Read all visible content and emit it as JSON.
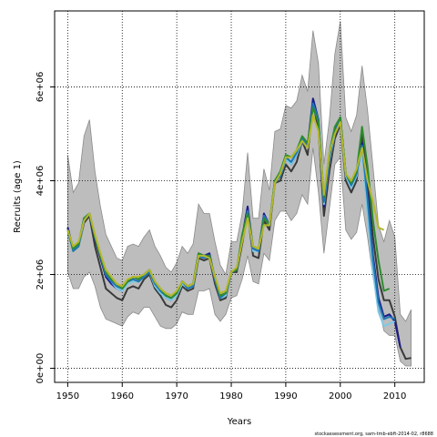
{
  "chart_data": {
    "type": "line",
    "title": "",
    "xlabel": "Years",
    "ylabel": "Recruits (age 1)",
    "xlim": [
      1947.6,
      2015.4
    ],
    "ylim": [
      -300000,
      7620000
    ],
    "x_ticks": [
      1950,
      1960,
      1970,
      1980,
      1990,
      2000,
      2010
    ],
    "x_tick_labels": [
      "1950",
      "1960",
      "1970",
      "1980",
      "1990",
      "2000",
      "2010"
    ],
    "y_ticks": [
      0,
      2000000,
      4000000,
      6000000
    ],
    "y_tick_labels": [
      "0e+00",
      "2e+06",
      "4e+06",
      "6e+06"
    ],
    "grid": true,
    "footnote": "stockassessment.org, sam-tmb-ebft-2014-02, r8688",
    "band": {
      "x": [
        1950,
        1951,
        1952,
        1953,
        1954,
        1955,
        1956,
        1957,
        1958,
        1959,
        1960,
        1961,
        1962,
        1963,
        1964,
        1965,
        1966,
        1967,
        1968,
        1969,
        1970,
        1971,
        1972,
        1973,
        1974,
        1975,
        1976,
        1977,
        1978,
        1979,
        1980,
        1981,
        1982,
        1983,
        1984,
        1985,
        1986,
        1987,
        1988,
        1989,
        1990,
        1991,
        1992,
        1993,
        1994,
        1995,
        1996,
        1997,
        1998,
        1999,
        2000,
        2001,
        2002,
        2003,
        2004,
        2005,
        2006,
        2007,
        2008,
        2009,
        2010,
        2011,
        2012,
        2013
      ],
      "upper": [
        4550000,
        3750000,
        3950000,
        4950000,
        5300000,
        4200000,
        3450000,
        2850000,
        2600000,
        2350000,
        2300000,
        2600000,
        2650000,
        2600000,
        2800000,
        2950000,
        2600000,
        2400000,
        2150000,
        2050000,
        2250000,
        2600000,
        2450000,
        2650000,
        3500000,
        3300000,
        3300000,
        2700000,
        2200000,
        2000000,
        2700000,
        2700000,
        3300000,
        4600000,
        3200000,
        3200000,
        4250000,
        3800000,
        5050000,
        5100000,
        5600000,
        5550000,
        5700000,
        6250000,
        5900000,
        7200000,
        6500000,
        4350000,
        5300000,
        6700000,
        7400000,
        5350000,
        5050000,
        5400000,
        6450000,
        5500000,
        4300000,
        3050000,
        2700000,
        3150000,
        2800000,
        1150000,
        1000000,
        1250000
      ],
      "lower": [
        2050000,
        1700000,
        1700000,
        1950000,
        2050000,
        1750000,
        1300000,
        1050000,
        1000000,
        950000,
        900000,
        1100000,
        1200000,
        1150000,
        1300000,
        1300000,
        1100000,
        900000,
        850000,
        850000,
        950000,
        1200000,
        1150000,
        1150000,
        1650000,
        1650000,
        1700000,
        1150000,
        1000000,
        1150000,
        1500000,
        1550000,
        1900000,
        2400000,
        1850000,
        1800000,
        2450000,
        2300000,
        3150000,
        3350000,
        3350000,
        3150000,
        3300000,
        3700000,
        3500000,
        4700000,
        3750000,
        2450000,
        3400000,
        4350000,
        4500000,
        2950000,
        2750000,
        2900000,
        3500000,
        2800000,
        1950000,
        1300000,
        800000,
        700000,
        700000,
        150000,
        50000,
        50000
      ]
    },
    "series": [
      {
        "color": "#3a3a3a",
        "x": [
          1950,
          1951,
          1952,
          1953,
          1954,
          1955,
          1956,
          1957,
          1958,
          1959,
          1960,
          1961,
          1962,
          1963,
          1964,
          1965,
          1966,
          1967,
          1968,
          1969,
          1970,
          1971,
          1972,
          1973,
          1974,
          1975,
          1976,
          1977,
          1978,
          1979,
          1980,
          1981,
          1982,
          1983,
          1984,
          1985,
          1986,
          1987,
          1988,
          1989,
          1990,
          1991,
          1992,
          1993,
          1994,
          1995,
          1996,
          1997,
          1998,
          1999,
          2000,
          2001,
          2002,
          2003,
          2004,
          2005,
          2006,
          2007,
          2008,
          2009,
          2010,
          2011,
          2012,
          2013
        ],
        "values": [
          3000000,
          2500000,
          2600000,
          3100000,
          3250000,
          2600000,
          2150000,
          1700000,
          1600000,
          1500000,
          1450000,
          1700000,
          1750000,
          1700000,
          1900000,
          2000000,
          1700000,
          1550000,
          1350000,
          1300000,
          1450000,
          1750000,
          1650000,
          1700000,
          2350000,
          2300000,
          2350000,
          1800000,
          1450000,
          1500000,
          2050000,
          2050000,
          2650000,
          3300000,
          2400000,
          2350000,
          3150000,
          2950000,
          3950000,
          4000000,
          4350000,
          4200000,
          4400000,
          4850000,
          4550000,
          5650000,
          5100000,
          3250000,
          4200000,
          4900000,
          5200000,
          4000000,
          3750000,
          4000000,
          5000000,
          4000000,
          2800000,
          1900000,
          1450000,
          1450000,
          1100000,
          450000,
          200000,
          220000
        ]
      },
      {
        "color": "#1a1a8c",
        "x": [
          1950,
          1951,
          1952,
          1953,
          1954,
          1955,
          1956,
          1957,
          1958,
          1959,
          1960,
          1961,
          1962,
          1963,
          1964,
          1965,
          1966,
          1967,
          1968,
          1969,
          1970,
          1971,
          1972,
          1973,
          1974,
          1975,
          1976,
          1977,
          1978,
          1979,
          1980,
          1981,
          1982,
          1983,
          1984,
          1985,
          1986,
          1987,
          1988,
          1989,
          1990,
          1991,
          1992,
          1993,
          1994,
          1995,
          1996,
          1997,
          1998,
          1999,
          2000,
          2001,
          2002,
          2003,
          2004,
          2005,
          2006,
          2007,
          2008,
          2009,
          2010,
          2011
        ],
        "values": [
          3000000,
          2550000,
          2650000,
          3200000,
          3300000,
          2750000,
          2350000,
          1950000,
          1800000,
          1700000,
          1650000,
          1850000,
          1900000,
          1850000,
          2000000,
          2100000,
          1800000,
          1650000,
          1500000,
          1450000,
          1600000,
          1850000,
          1750000,
          1800000,
          2450000,
          2400000,
          2450000,
          1900000,
          1550000,
          1600000,
          2050000,
          2100000,
          2800000,
          3450000,
          2550000,
          2500000,
          3300000,
          3050000,
          4000000,
          4150000,
          4500000,
          4350000,
          4550000,
          4900000,
          4750000,
          5750000,
          5300000,
          3450000,
          4500000,
          5050000,
          5350000,
          4150000,
          3900000,
          4150000,
          4800000,
          3700000,
          2400000,
          1500000,
          1100000,
          1150000,
          1000000,
          450000
        ]
      },
      {
        "color": "#7ec8e3",
        "x": [
          1950,
          1951,
          1952,
          1953,
          1954,
          1955,
          1956,
          1957,
          1958,
          1959,
          1960,
          1961,
          1962,
          1963,
          1964,
          1965,
          1966,
          1967,
          1968,
          1969,
          1970,
          1971,
          1972,
          1973,
          1974,
          1975,
          1976,
          1977,
          1978,
          1979,
          1980,
          1981,
          1982,
          1983,
          1984,
          1985,
          1986,
          1987,
          1988,
          1989,
          1990,
          1991,
          1992,
          1993,
          1994,
          1995,
          1996,
          1997,
          1998,
          1999,
          2000,
          2001,
          2002,
          2003,
          2004,
          2005,
          2006,
          2007,
          2008,
          2009,
          2010
        ],
        "values": [
          2950000,
          2500000,
          2600000,
          3150000,
          3300000,
          2800000,
          2400000,
          2000000,
          1850000,
          1700000,
          1650000,
          1800000,
          1850000,
          1850000,
          1950000,
          2050000,
          1750000,
          1600000,
          1500000,
          1450000,
          1550000,
          1800000,
          1700000,
          1750000,
          2400000,
          2400000,
          2400000,
          1900000,
          1500000,
          1550000,
          2050000,
          2100000,
          2750000,
          3350000,
          2500000,
          2500000,
          3250000,
          3050000,
          3950000,
          4100000,
          4450000,
          4350000,
          4550000,
          4850000,
          4700000,
          5600000,
          5250000,
          3500000,
          4450000,
          5000000,
          5250000,
          4100000,
          3850000,
          4100000,
          4650000,
          3300000,
          2050000,
          1200000,
          900000,
          950000,
          1000000
        ]
      },
      {
        "color": "#1f78b4",
        "x": [
          1950,
          1951,
          1952,
          1953,
          1954,
          1955,
          1956,
          1957,
          1958,
          1959,
          1960,
          1961,
          1962,
          1963,
          1964,
          1965,
          1966,
          1967,
          1968,
          1969,
          1970,
          1971,
          1972,
          1973,
          1974,
          1975,
          1976,
          1977,
          1978,
          1979,
          1980,
          1981,
          1982,
          1983,
          1984,
          1985,
          1986,
          1987,
          1988,
          1989,
          1990,
          1991,
          1992,
          1993,
          1994,
          1995,
          1996,
          1997,
          1998,
          1999,
          2000,
          2001,
          2002,
          2003,
          2004,
          2005,
          2006,
          2007,
          2008,
          2009,
          2010
        ],
        "values": [
          2950000,
          2500000,
          2600000,
          3200000,
          3300000,
          2800000,
          2400000,
          2000000,
          1850000,
          1750000,
          1700000,
          1850000,
          1900000,
          1850000,
          1950000,
          2050000,
          1800000,
          1650000,
          1550000,
          1500000,
          1600000,
          1850000,
          1700000,
          1750000,
          2400000,
          2350000,
          2400000,
          1900000,
          1500000,
          1600000,
          2050000,
          2100000,
          2800000,
          3350000,
          2550000,
          2500000,
          3250000,
          3050000,
          3950000,
          4100000,
          4500000,
          4400000,
          4600000,
          4900000,
          4750000,
          5650000,
          5300000,
          3550000,
          4500000,
          5050000,
          5300000,
          4150000,
          3900000,
          4150000,
          4750000,
          3600000,
          2300000,
          1400000,
          1050000,
          1100000,
          1050000
        ]
      },
      {
        "color": "#2e8b2e",
        "x": [
          1950,
          1951,
          1952,
          1953,
          1954,
          1955,
          1956,
          1957,
          1958,
          1959,
          1960,
          1961,
          1962,
          1963,
          1964,
          1965,
          1966,
          1967,
          1968,
          1969,
          1970,
          1971,
          1972,
          1973,
          1974,
          1975,
          1976,
          1977,
          1978,
          1979,
          1980,
          1981,
          1982,
          1983,
          1984,
          1985,
          1986,
          1987,
          1988,
          1989,
          1990,
          1991,
          1992,
          1993,
          1994,
          1995,
          1996,
          1997,
          1998,
          1999,
          2000,
          2001,
          2002,
          2003,
          2004,
          2005,
          2006,
          2007,
          2008,
          2009
        ],
        "values": [
          2950000,
          2550000,
          2650000,
          3200000,
          3300000,
          2800000,
          2400000,
          2050000,
          1900000,
          1800000,
          1700000,
          1850000,
          1950000,
          1900000,
          2000000,
          2100000,
          1850000,
          1700000,
          1550000,
          1500000,
          1600000,
          1850000,
          1750000,
          1800000,
          2450000,
          2400000,
          2400000,
          1950000,
          1550000,
          1600000,
          2050000,
          2100000,
          2850000,
          3300000,
          2600000,
          2550000,
          3200000,
          3050000,
          4000000,
          4200000,
          4550000,
          4500000,
          4650000,
          4950000,
          4800000,
          5550000,
          5250000,
          3650000,
          4600000,
          5150000,
          5350000,
          4150000,
          3950000,
          4200000,
          5150000,
          4300000,
          3150000,
          2300000,
          1650000,
          1700000
        ]
      },
      {
        "color": "#b5b82a",
        "x": [
          1950,
          1951,
          1952,
          1953,
          1954,
          1955,
          1956,
          1957,
          1958,
          1959,
          1960,
          1961,
          1962,
          1963,
          1964,
          1965,
          1966,
          1967,
          1968,
          1969,
          1970,
          1971,
          1972,
          1973,
          1974,
          1975,
          1976,
          1977,
          1978,
          1979,
          1980,
          1981,
          1982,
          1983,
          1984,
          1985,
          1986,
          1987,
          1988,
          1989,
          1990,
          1991,
          1992,
          1993,
          1994,
          1995,
          1996,
          1997,
          1998,
          1999,
          2000,
          2001,
          2002,
          2003,
          2004,
          2005,
          2006,
          2007,
          2008
        ],
        "values": [
          2950000,
          2600000,
          2700000,
          3150000,
          3300000,
          2850000,
          2450000,
          2100000,
          1950000,
          1800000,
          1750000,
          1900000,
          1950000,
          1950000,
          2000000,
          2100000,
          1850000,
          1700000,
          1600000,
          1550000,
          1650000,
          1850000,
          1750000,
          1800000,
          2400000,
          2400000,
          2350000,
          1950000,
          1600000,
          1650000,
          2050000,
          2150000,
          2700000,
          3200000,
          2600000,
          2550000,
          3050000,
          3050000,
          3950000,
          4150000,
          4500000,
          4500000,
          4650000,
          4850000,
          4700000,
          5400000,
          5050000,
          3700000,
          4600000,
          5000000,
          5250000,
          4150000,
          4000000,
          4250000,
          4700000,
          4000000,
          3550000,
          3000000,
          2950000
        ]
      }
    ]
  }
}
